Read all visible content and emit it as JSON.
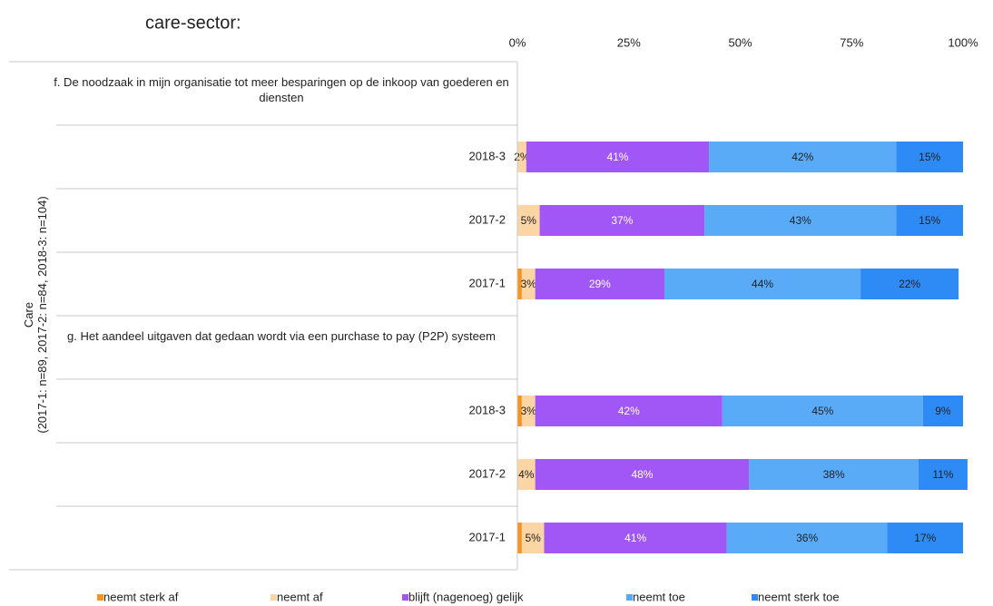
{
  "chart_data": {
    "type": "stacked-barh",
    "title": "care-sector:",
    "ylabel": [
      "Care",
      "(2017-1: n=89, 2017-2: n=84, 2018-3: n=104)"
    ],
    "groups": [
      "f. De noodzaak in mijn organisatie tot meer besparingen op de inkoop van goederen en diensten",
      "g. Het aandeel uitgaven dat gedaan wordt via een purchase to pay (P2P) systeem"
    ],
    "categories": [
      "2018-3",
      "2017-2",
      "2017-1",
      "2018-3",
      "2017-2",
      "2017-1"
    ],
    "xlim": [
      0,
      100
    ],
    "xticks": [
      {
        "value": 0,
        "label": "0%"
      },
      {
        "value": 25,
        "label": "25%"
      },
      {
        "value": 50,
        "label": "50%"
      },
      {
        "value": 75,
        "label": "75%"
      },
      {
        "value": 100,
        "label": "100%"
      }
    ],
    "legend": "bottom",
    "series": [
      {
        "name": "neemt sterk af",
        "color": "#f7941d",
        "values": [
          0,
          0,
          1,
          1,
          0,
          1
        ]
      },
      {
        "name": "neemt af",
        "color": "#fcd5a5",
        "values": [
          2,
          5,
          3,
          3,
          4,
          5
        ],
        "value_labels": [
          "2%",
          "5%",
          "3%",
          "3%",
          "4%",
          "5%"
        ]
      },
      {
        "name": "blijft (nagenoeg) gelijk",
        "color": "#a157f5",
        "values": [
          41,
          37,
          29,
          42,
          48,
          41
        ],
        "value_labels": [
          "41%",
          "37%",
          "29%",
          "42%",
          "48%",
          "41%"
        ]
      },
      {
        "name": "neemt toe",
        "color": "#5aabf7",
        "values": [
          42,
          43,
          44,
          45,
          38,
          36
        ],
        "value_labels": [
          "42%",
          "43%",
          "44%",
          "45%",
          "38%",
          "36%"
        ]
      },
      {
        "name": "neemt sterk toe",
        "color": "#2e8bf5",
        "values": [
          15,
          15,
          22,
          9,
          11,
          17
        ],
        "value_labels": [
          "15%",
          "15%",
          "22%",
          "9%",
          "11%",
          "17%"
        ]
      }
    ]
  }
}
